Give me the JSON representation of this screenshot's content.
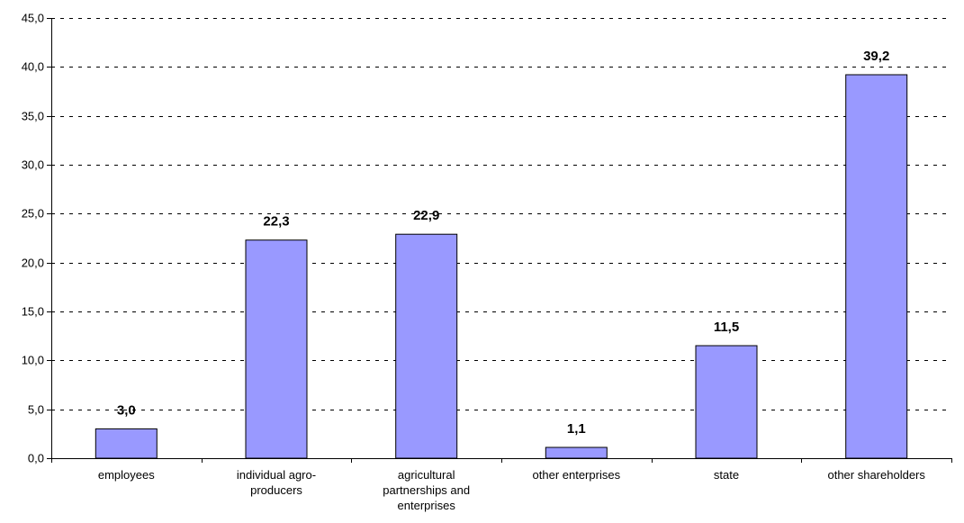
{
  "chart_data": {
    "type": "bar",
    "categories": [
      [
        "employees"
      ],
      [
        "individual agro-",
        "producers"
      ],
      [
        "agricultural",
        "partnerships and",
        "enterprises"
      ],
      [
        "other enterprises"
      ],
      [
        "state"
      ],
      [
        "other shareholders"
      ]
    ],
    "values": [
      3.0,
      22.3,
      22.9,
      1.1,
      11.5,
      39.2
    ],
    "data_labels": [
      "3,0",
      "22,3",
      "22,9",
      "1,1",
      "11,5",
      "39,2"
    ],
    "ylim": [
      0,
      45
    ],
    "y_ticks": [
      0,
      5,
      10,
      15,
      20,
      25,
      30,
      35,
      40,
      45
    ],
    "y_tick_labels": [
      "0,0",
      "5,0",
      "10,0",
      "15,0",
      "20,0",
      "25,0",
      "30,0",
      "35,0",
      "40,0",
      "45,0"
    ],
    "grid": true,
    "grid_style": "dashed",
    "bar_color": "#9999ff",
    "bar_border": "#000000",
    "title": "",
    "xlabel": "",
    "ylabel": ""
  }
}
